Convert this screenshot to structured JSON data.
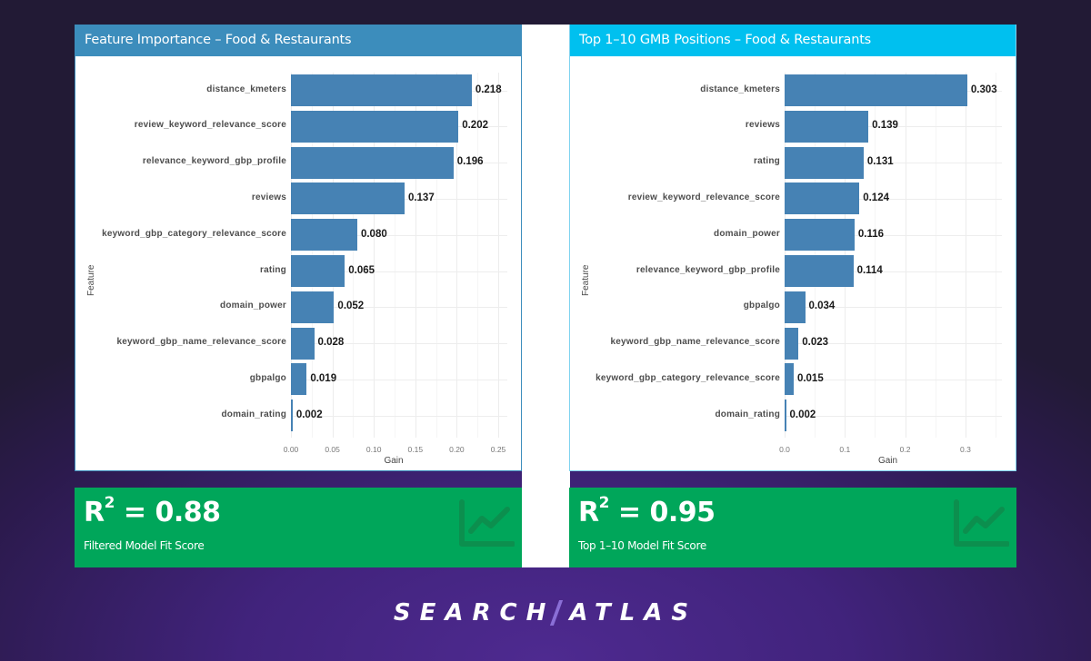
{
  "panels": [
    {
      "title": "Feature Importance – Food & Restaurants",
      "header_color": "#3c8dbc",
      "score": {
        "value_prefix": "R",
        "superscript": "2",
        "value_text": " = 0.88",
        "label": "Filtered Model Fit Score"
      }
    },
    {
      "title": "Top 1–10 GMB Positions – Food & Restaurants",
      "header_color": "#00c0ef",
      "score": {
        "value_prefix": "R",
        "superscript": "2",
        "value_text": " = 0.95",
        "label": "Top 1–10 Model Fit Score"
      }
    }
  ],
  "brand": {
    "left": "SEARCH",
    "right": "ATLAS"
  },
  "colors": {
    "bar": "#4682b4",
    "score_bg": "#00a65a",
    "left_header": "#3c8dbc",
    "right_header": "#00c0ef"
  },
  "chart_data": [
    {
      "type": "bar",
      "orientation": "horizontal",
      "title": "Feature Importance – Food & Restaurants",
      "xlabel": "Gain",
      "ylabel": "Feature",
      "xlim": [
        0,
        0.27
      ],
      "xticks": [
        "0.00",
        "0.05",
        "0.10",
        "0.15",
        "0.20",
        "0.25"
      ],
      "grid": true,
      "categories": [
        "distance_kmeters",
        "review_keyword_relevance_score",
        "relevance_keyword_gbp_profile",
        "reviews",
        "keyword_gbp_category_relevance_score",
        "rating",
        "domain_power",
        "keyword_gbp_name_relevance_score",
        "gbpalgo",
        "domain_rating"
      ],
      "values": [
        0.218,
        0.202,
        0.196,
        0.137,
        0.08,
        0.065,
        0.052,
        0.028,
        0.019,
        0.002
      ],
      "labels": [
        "0.218",
        "0.202",
        "0.196",
        "0.137",
        "0.080",
        "0.065",
        "0.052",
        "0.028",
        "0.019",
        "0.002"
      ]
    },
    {
      "type": "bar",
      "orientation": "horizontal",
      "title": "Top 1–10 GMB Positions – Food & Restaurants",
      "xlabel": "Gain",
      "ylabel": "Feature",
      "xlim": [
        0,
        0.36
      ],
      "xticks": [
        "0.0",
        "0.1",
        "0.2",
        "0.3"
      ],
      "grid": true,
      "categories": [
        "distance_kmeters",
        "reviews",
        "rating",
        "review_keyword_relevance_score",
        "domain_power",
        "relevance_keyword_gbp_profile",
        "gbpalgo",
        "keyword_gbp_name_relevance_score",
        "keyword_gbp_category_relevance_score",
        "domain_rating"
      ],
      "values": [
        0.303,
        0.139,
        0.131,
        0.124,
        0.116,
        0.114,
        0.034,
        0.023,
        0.015,
        0.002
      ],
      "labels": [
        "0.303",
        "0.139",
        "0.131",
        "0.124",
        "0.116",
        "0.114",
        "0.034",
        "0.023",
        "0.015",
        "0.002"
      ]
    }
  ]
}
